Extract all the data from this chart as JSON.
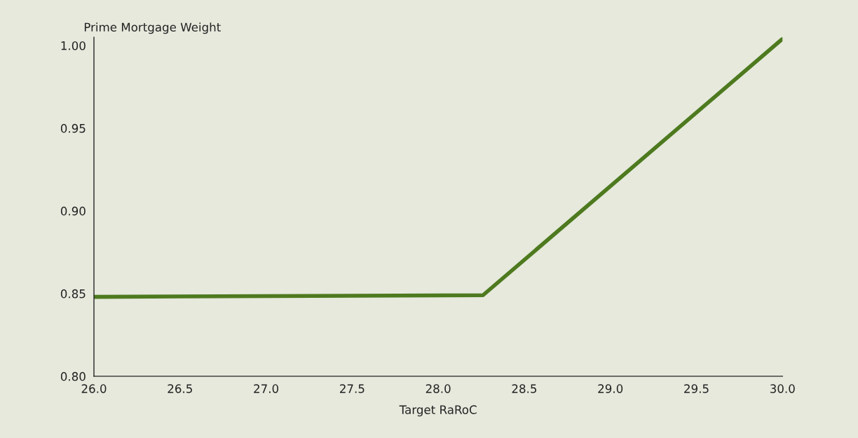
{
  "chart_data": {
    "type": "line",
    "xlabel": "Target RaRoC",
    "ylabel": "Prime Mortgage Weight",
    "x": [
      26.0,
      28.26,
      30.0
    ],
    "series": [
      {
        "color": "#4e7a1f",
        "values": [
          0.848,
          0.849,
          1.004
        ]
      }
    ],
    "xlim": [
      26.0,
      30.0
    ],
    "xticks": [
      {
        "value": 26.0,
        "label": "26.0"
      },
      26.5,
      {
        "value": 27.0,
        "label": "27.0"
      },
      27.5,
      {
        "value": 28.0,
        "label": "28.0"
      },
      28.5,
      {
        "value": 29.0,
        "label": "29.0"
      },
      29.5,
      {
        "value": 30.0,
        "label": "30.0"
      }
    ],
    "ylim": [
      0.8,
      1.005
    ],
    "yticks": [
      {
        "value": 0.8,
        "label": "0.80"
      },
      0.85,
      {
        "value": 0.9,
        "label": "0.90"
      },
      0.95,
      {
        "value": 1.0,
        "label": "1.00"
      }
    ],
    "grid": false,
    "legend": false
  }
}
